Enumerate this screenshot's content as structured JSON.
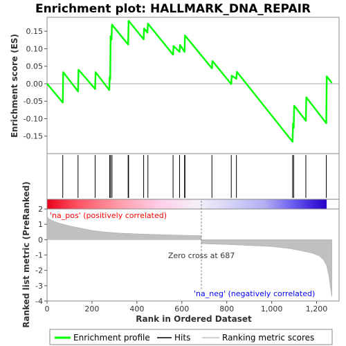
{
  "chart_data": {
    "type": "line",
    "title": "Enrichment plot: HALLMARK_DNA_REPAIR",
    "es_panel": {
      "ylabel": "Enrichment score (ES)",
      "ylim": [
        -0.2,
        0.19
      ],
      "yticks": [
        -0.15,
        -0.1,
        -0.05,
        0.0,
        0.05,
        0.1,
        0.15
      ],
      "ytick_labels": [
        "-0.15",
        "-0.10",
        "-0.05",
        "0.00",
        "0.05",
        "0.10",
        "0.15"
      ],
      "series": [
        {
          "name": "Enrichment profile",
          "color": "#00ff00",
          "x": [
            0,
            70,
            72,
            138,
            140,
            214,
            216,
            277,
            279,
            281,
            283,
            287,
            289,
            361,
            363,
            430,
            432,
            447,
            449,
            561,
            563,
            590,
            592,
            612,
            614,
            734,
            736,
            820,
            822,
            843,
            845,
            1093,
            1095,
            1098,
            1100,
            1152,
            1154,
            1243,
            1245,
            1268
          ],
          "y": [
            0.0,
            -0.054,
            0.033,
            -0.022,
            0.04,
            -0.015,
            0.033,
            -0.018,
            0.02,
            0.011,
            0.136,
            0.126,
            0.169,
            0.112,
            0.18,
            0.127,
            0.158,
            0.146,
            0.172,
            0.083,
            0.108,
            0.091,
            0.111,
            0.091,
            0.138,
            0.044,
            0.065,
            -0.001,
            0.023,
            0.014,
            0.034,
            -0.166,
            -0.114,
            -0.126,
            -0.063,
            -0.106,
            -0.039,
            -0.113,
            0.021,
            0.002
          ]
        }
      ]
    },
    "hits_panel": {
      "legend": "Hits",
      "x": [
        70,
        138,
        214,
        279,
        283,
        289,
        361,
        363,
        430,
        449,
        561,
        590,
        612,
        614,
        734,
        820,
        843,
        1093,
        1098,
        1152,
        1243
      ]
    },
    "metric_panel": {
      "ylabel": "Ranked list metric (PreRanked)",
      "xlabel": "Rank in Ordered Dataset",
      "ylim": [
        -4,
        2
      ],
      "yticks": [
        -4,
        -3,
        -2,
        -1,
        0,
        1,
        2
      ],
      "ytick_labels": [
        "-4",
        "-3",
        "-2",
        "-1",
        "0",
        "1",
        "2"
      ],
      "xlim": [
        0,
        1300
      ],
      "xticks": [
        0,
        200,
        400,
        600,
        800,
        1000,
        1200
      ],
      "xtick_labels": [
        "0",
        "200",
        "400",
        "600",
        "800",
        "1,000",
        "1,200"
      ],
      "series": [
        {
          "name": "Ranking metric scores",
          "color": "#c0c0c0",
          "x": [
            0,
            10,
            30,
            60,
            100,
            150,
            200,
            260,
            320,
            400,
            500,
            600,
            686,
            687,
            720,
            800,
            900,
            1000,
            1080,
            1130,
            1180,
            1210,
            1230,
            1245,
            1255,
            1262,
            1268
          ],
          "y": [
            1.5,
            1.35,
            1.2,
            1.05,
            0.9,
            0.75,
            0.6,
            0.5,
            0.43,
            0.38,
            0.33,
            0.29,
            0.26,
            -0.26,
            -0.28,
            -0.32,
            -0.38,
            -0.45,
            -0.58,
            -0.72,
            -0.88,
            -1.05,
            -1.3,
            -1.7,
            -2.4,
            -3.2,
            -3.7
          ]
        }
      ],
      "annotations": {
        "zero_cross": "Zero cross at 687",
        "pos_label": "'na_pos' (positively correlated)",
        "neg_label": "'na_neg' (negatively correlated)",
        "pos_color": "#ff0000",
        "neg_color": "#0000ff"
      }
    },
    "legend": [
      {
        "label": "Enrichment profile",
        "color": "#00ff00"
      },
      {
        "label": "Hits",
        "color": "#000000"
      },
      {
        "label": "Ranking metric scores",
        "color": "#c0c0c0"
      }
    ]
  }
}
